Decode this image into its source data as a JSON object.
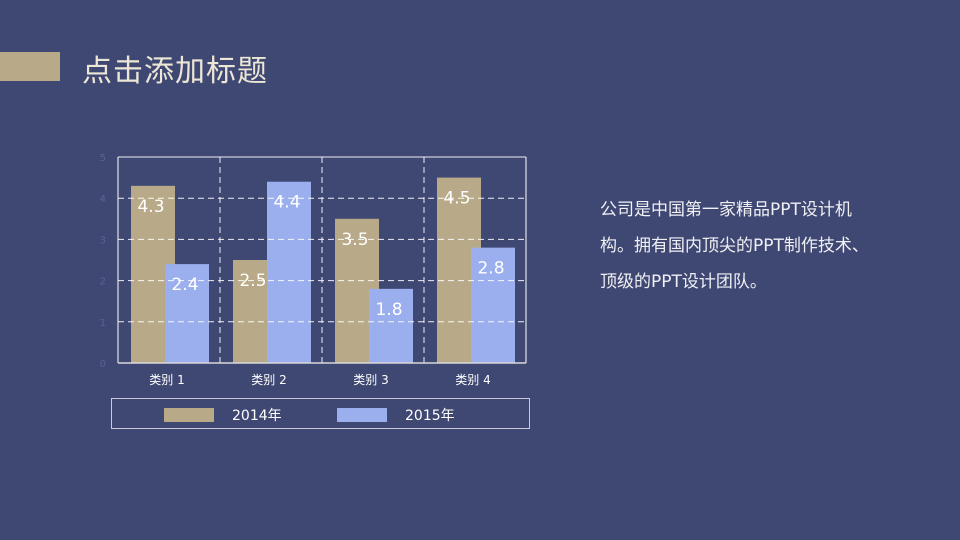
{
  "title": "点击添加标题",
  "description": "公司是中国第一家精品PPT设计机构。拥有国内顶尖的PPT制作技术、顶级的PPT设计团队。",
  "colors": {
    "background": "#3f4873",
    "accent": "#b8aa88",
    "series_2014": "#b8aa88",
    "series_2015": "#9bafee"
  },
  "chart_data": {
    "type": "bar",
    "categories": [
      "类别 1",
      "类别 2",
      "类别 3",
      "类别 4"
    ],
    "series": [
      {
        "name": "2014年",
        "values": [
          4.3,
          2.5,
          3.5,
          4.5
        ]
      },
      {
        "name": "2015年",
        "values": [
          2.4,
          4.4,
          1.8,
          2.8
        ]
      }
    ],
    "yticks": [
      "0",
      "1",
      "2",
      "3",
      "4",
      "5"
    ],
    "ylim": [
      0,
      5
    ],
    "grid": true,
    "data_labels": true,
    "legend_position": "bottom"
  }
}
